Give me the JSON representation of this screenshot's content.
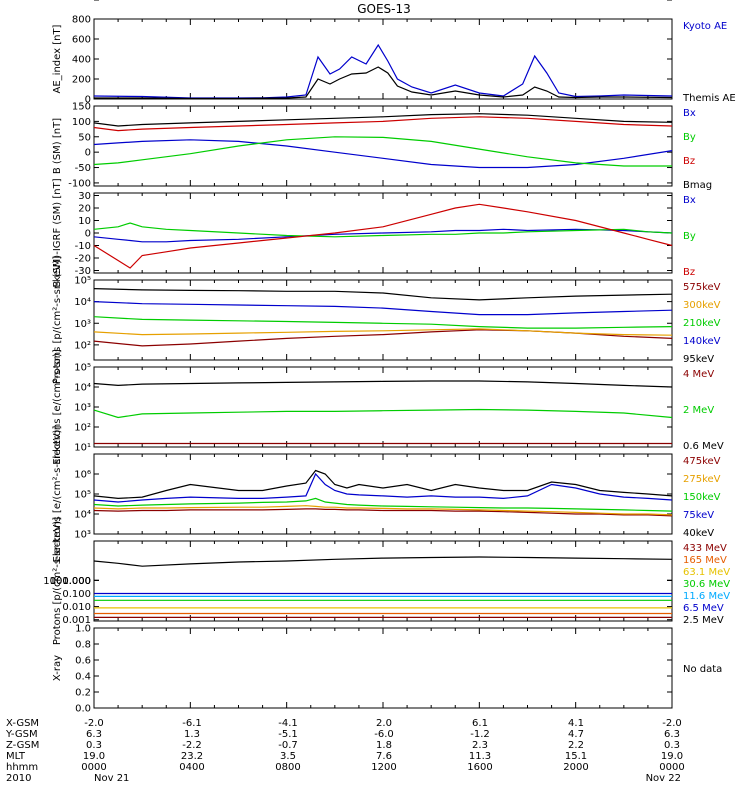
{
  "title": "GOES-13",
  "footer_labels": [
    "X-GSM",
    "Y-GSM",
    "Z-GSM",
    "MLT",
    "hhmm",
    "2010"
  ],
  "footer_rows": [
    [
      "-2.0",
      "-6.1",
      "-4.1",
      "2.0",
      "6.1",
      "4.1",
      "-2.0"
    ],
    [
      "6.3",
      "1.3",
      "-5.1",
      "-6.0",
      "-1.2",
      "4.7",
      "6.3"
    ],
    [
      "0.3",
      "-2.2",
      "-0.7",
      "1.8",
      "2.3",
      "2.2",
      "0.3"
    ],
    [
      "19.0",
      "23.2",
      "3.5",
      "7.6",
      "11.3",
      "15.1",
      "19.0"
    ],
    [
      "0000",
      "0400",
      "0800",
      "1200",
      "1600",
      "2000",
      "0000"
    ],
    [
      "Nov 21",
      "",
      "",
      "",
      "",
      "",
      "Nov 22"
    ]
  ],
  "chart_data": [
    {
      "type": "line",
      "ylabel": "AE_index [nT]",
      "yscale": "linear",
      "ylim": [
        0,
        800
      ],
      "yticks": [
        "0",
        "200",
        "400",
        "600",
        "800"
      ],
      "x_hours": [
        0,
        2,
        4,
        6,
        7,
        8,
        8.8,
        9.3,
        9.8,
        10.2,
        10.7,
        11.3,
        11.8,
        12.2,
        12.6,
        13.2,
        14,
        15,
        16,
        17,
        17.8,
        18.3,
        18.8,
        19.3,
        20,
        21,
        22,
        24
      ],
      "series": [
        {
          "name": "Kyoto AE",
          "color": "#0000cc",
          "values": [
            30,
            25,
            10,
            10,
            12,
            20,
            40,
            420,
            250,
            300,
            420,
            350,
            540,
            380,
            200,
            120,
            60,
            140,
            60,
            30,
            150,
            430,
            260,
            60,
            25,
            30,
            40,
            30
          ]
        },
        {
          "name": "Themis AE",
          "color": "#000000",
          "values": [
            10,
            10,
            5,
            5,
            8,
            10,
            20,
            200,
            150,
            200,
            250,
            260,
            320,
            260,
            130,
            70,
            40,
            80,
            40,
            20,
            40,
            120,
            80,
            20,
            15,
            20,
            20,
            15
          ]
        }
      ]
    },
    {
      "type": "line",
      "ylabel": "B (SM) [nT]",
      "yscale": "linear",
      "ylim": [
        -110,
        150
      ],
      "yticks": [
        "-100",
        "-50",
        "0",
        "50",
        "100",
        "150"
      ],
      "x_hours": [
        0,
        1,
        2,
        4,
        6,
        8,
        10,
        12,
        14,
        16,
        18,
        20,
        22,
        24
      ],
      "series": [
        {
          "name": "Bx",
          "color": "#0000cc",
          "values": [
            25,
            30,
            35,
            40,
            35,
            20,
            0,
            -20,
            -40,
            -50,
            -50,
            -40,
            -20,
            5
          ]
        },
        {
          "name": "By",
          "color": "#00cc00",
          "values": [
            -40,
            -35,
            -25,
            -5,
            20,
            40,
            50,
            48,
            35,
            10,
            -15,
            -35,
            -45,
            -45
          ]
        },
        {
          "name": "Bz",
          "color": "#cc0000",
          "values": [
            80,
            70,
            75,
            80,
            85,
            90,
            95,
            100,
            110,
            115,
            110,
            100,
            90,
            85
          ]
        },
        {
          "name": "Bmag",
          "color": "#000000",
          "values": [
            95,
            85,
            90,
            95,
            100,
            105,
            110,
            115,
            122,
            125,
            120,
            110,
            100,
            97
          ]
        }
      ]
    },
    {
      "type": "line",
      "ylabel": "B (SM)-IGRF (SM) [nT]",
      "yscale": "linear",
      "ylim": [
        -32,
        32
      ],
      "yticks": [
        "-30",
        "-20",
        "-10",
        "0",
        "10",
        "20",
        "30"
      ],
      "x_hours": [
        0,
        1,
        1.5,
        2,
        3,
        4,
        6,
        8,
        10,
        12,
        14,
        15,
        16,
        17,
        18,
        20,
        22,
        23,
        24
      ],
      "series": [
        {
          "name": "Bx",
          "color": "#0000cc",
          "values": [
            -3,
            -5,
            -6,
            -7,
            -7,
            -6,
            -5,
            -3,
            -1,
            0,
            1,
            2,
            2,
            3,
            2,
            3,
            2,
            1,
            0
          ]
        },
        {
          "name": "By",
          "color": "#00cc00",
          "values": [
            3,
            5,
            8,
            5,
            3,
            2,
            0,
            -2,
            -3,
            -2,
            -1,
            -1,
            0,
            0,
            1,
            2,
            3,
            1,
            0
          ]
        },
        {
          "name": "Bz",
          "color": "#cc0000",
          "values": [
            -10,
            -22,
            -28,
            -18,
            -15,
            -12,
            -8,
            -4,
            0,
            5,
            15,
            20,
            23,
            20,
            17,
            10,
            0,
            -5,
            -10
          ]
        }
      ]
    },
    {
      "type": "line",
      "ylabel": "Protons [p/(cm²-s-sr-keV)]",
      "yscale": "log",
      "ylim": [
        20,
        100000
      ],
      "yticks": [
        "10²",
        "10³",
        "10⁴",
        "10⁵"
      ],
      "x_hours": [
        0,
        2,
        4,
        6,
        8,
        10,
        12,
        14,
        16,
        18,
        20,
        22,
        24
      ],
      "series": [
        {
          "name": "575keV",
          "color": "#8b0000",
          "values": [
            150,
            90,
            110,
            150,
            200,
            250,
            300,
            400,
            500,
            450,
            350,
            250,
            200
          ]
        },
        {
          "name": "300keV",
          "color": "#e6a000",
          "values": [
            400,
            300,
            320,
            350,
            380,
            420,
            450,
            500,
            550,
            450,
            350,
            300,
            280
          ]
        },
        {
          "name": "210keV",
          "color": "#00cc00",
          "values": [
            2000,
            1500,
            1400,
            1300,
            1200,
            1100,
            1000,
            900,
            700,
            600,
            600,
            650,
            700
          ]
        },
        {
          "name": "140keV",
          "color": "#0000cc",
          "values": [
            10000,
            8000,
            7500,
            7000,
            6500,
            6000,
            5000,
            3500,
            2500,
            2500,
            3000,
            3500,
            4000
          ]
        },
        {
          "name": "95keV",
          "color": "#000000",
          "values": [
            40000,
            35000,
            33000,
            32000,
            30000,
            30000,
            25000,
            15000,
            12000,
            15000,
            18000,
            20000,
            22000
          ]
        }
      ]
    },
    {
      "type": "line",
      "ylabel": "Electrons [e/(cm²-s-sr)]",
      "yscale": "log",
      "ylim": [
        10,
        100000
      ],
      "yticks": [
        "10¹",
        "10²",
        "10³",
        "10⁴",
        "10⁵"
      ],
      "x_hours": [
        0,
        1,
        2,
        4,
        6,
        8,
        10,
        12,
        14,
        16,
        18,
        20,
        22,
        24
      ],
      "series": [
        {
          "name": "4 MeV",
          "color": "#8b0000",
          "values": [
            15,
            15,
            15,
            15,
            15,
            15,
            15,
            15,
            15,
            15,
            15,
            15,
            15,
            15
          ]
        },
        {
          "name": "2 MeV",
          "color": "#00cc00",
          "values": [
            700,
            300,
            450,
            500,
            550,
            600,
            600,
            650,
            700,
            750,
            700,
            600,
            500,
            300
          ]
        },
        {
          "name": "0.6 MeV",
          "color": "#000000",
          "values": [
            15000,
            12000,
            14000,
            15000,
            16000,
            17000,
            18000,
            19000,
            20000,
            20000,
            18000,
            15000,
            12000,
            10000
          ]
        }
      ]
    },
    {
      "type": "line",
      "ylabel": "Electrons [e/(cm²-s-sr-keV)]",
      "yscale": "log",
      "ylim": [
        1000,
        10000000
      ],
      "yticks": [
        "10³",
        "10⁴",
        "10⁵",
        "10⁶"
      ],
      "x_hours": [
        0,
        1,
        2,
        3,
        4,
        6,
        7,
        8,
        8.8,
        9.2,
        9.6,
        10,
        10.5,
        11,
        12,
        13,
        14,
        15,
        16,
        17,
        18,
        19,
        20,
        21,
        22,
        23,
        24
      ],
      "series": [
        {
          "name": "475keV",
          "color": "#8b0000",
          "values": [
            15000,
            14000,
            15000,
            15000,
            16000,
            16000,
            16000,
            17000,
            18000,
            18000,
            17000,
            17000,
            16000,
            16000,
            15000,
            15000,
            15000,
            14000,
            14000,
            13000,
            12000,
            11000,
            10000,
            10000,
            9000,
            9000,
            8000
          ]
        },
        {
          "name": "275keV",
          "color": "#e6a000",
          "values": [
            20000,
            18000,
            20000,
            20000,
            21000,
            22000,
            22000,
            24000,
            26000,
            24000,
            22000,
            22000,
            20000,
            20000,
            19000,
            18000,
            18000,
            17000,
            16000,
            15000,
            14000,
            13000,
            12000,
            11000,
            10000,
            10000,
            9000
          ]
        },
        {
          "name": "150keV",
          "color": "#00cc00",
          "values": [
            30000,
            25000,
            28000,
            30000,
            32000,
            35000,
            38000,
            40000,
            45000,
            60000,
            40000,
            35000,
            30000,
            28000,
            25000,
            24000,
            23000,
            22000,
            21000,
            20000,
            20000,
            19000,
            18000,
            17000,
            16000,
            15000,
            14000
          ]
        },
        {
          "name": "75keV",
          "color": "#0000cc",
          "values": [
            50000,
            40000,
            50000,
            60000,
            70000,
            60000,
            60000,
            70000,
            80000,
            1000000,
            300000,
            150000,
            100000,
            90000,
            80000,
            70000,
            80000,
            70000,
            70000,
            60000,
            80000,
            300000,
            200000,
            100000,
            70000,
            60000,
            50000
          ]
        },
        {
          "name": "40keV",
          "color": "#000000",
          "values": [
            80000,
            60000,
            70000,
            150000,
            300000,
            150000,
            150000,
            250000,
            350000,
            1500000,
            1000000,
            300000,
            200000,
            300000,
            200000,
            300000,
            150000,
            300000,
            200000,
            150000,
            150000,
            400000,
            300000,
            150000,
            120000,
            100000,
            80000
          ]
        }
      ]
    },
    {
      "type": "line",
      "ylabel": "Protons [p/(cm²-s-sr-keV)]",
      "yscale": "log",
      "ylim": [
        0.0008,
        1000
      ],
      "yticks": [
        "0.001",
        "0.010",
        "0.100",
        "1.000",
        "10.000",
        "100.000",
        "1000.000"
      ],
      "x_hours": [
        0,
        1,
        2,
        4,
        6,
        8,
        10,
        12,
        14,
        16,
        18,
        20,
        22,
        24
      ],
      "series": [
        {
          "name": "433 MeV",
          "color": "#8b0000",
          "values": [
            0.0015,
            0.0015,
            0.0015,
            0.0015,
            0.0015,
            0.0015,
            0.0015,
            0.0015,
            0.0015,
            0.0015,
            0.0015,
            0.0015,
            0.0015,
            0.0015
          ]
        },
        {
          "name": "165 MeV",
          "color": "#e65c00",
          "values": [
            0.003,
            0.003,
            0.003,
            0.003,
            0.003,
            0.003,
            0.003,
            0.003,
            0.003,
            0.003,
            0.003,
            0.003,
            0.003,
            0.003
          ]
        },
        {
          "name": "63.1 MeV",
          "color": "#e6c200",
          "values": [
            0.008,
            0.008,
            0.008,
            0.008,
            0.008,
            0.008,
            0.008,
            0.008,
            0.008,
            0.008,
            0.008,
            0.008,
            0.008,
            0.008
          ]
        },
        {
          "name": "30.6 MeV",
          "color": "#00cc00",
          "values": [
            0.03,
            0.03,
            0.03,
            0.03,
            0.03,
            0.03,
            0.03,
            0.03,
            0.03,
            0.03,
            0.03,
            0.03,
            0.03,
            0.03
          ]
        },
        {
          "name": "11.6 MeV",
          "color": "#00aaff",
          "values": [
            0.06,
            0.06,
            0.06,
            0.06,
            0.06,
            0.06,
            0.06,
            0.06,
            0.06,
            0.06,
            0.06,
            0.06,
            0.06,
            0.06
          ]
        },
        {
          "name": "6.5 MeV",
          "color": "#0000cc",
          "values": [
            0.1,
            0.1,
            0.1,
            0.1,
            0.1,
            0.1,
            0.1,
            0.1,
            0.1,
            0.1,
            0.1,
            0.1,
            0.1,
            0.1
          ]
        },
        {
          "name": "2.5 MeV",
          "color": "#000000",
          "values": [
            30,
            20,
            12,
            18,
            25,
            30,
            40,
            50,
            55,
            60,
            55,
            50,
            45,
            40
          ]
        }
      ]
    },
    {
      "type": "line",
      "ylabel": "X-ray",
      "yscale": "linear",
      "ylim": [
        0,
        1
      ],
      "yticks": [
        "0.0",
        "0.2",
        "0.4",
        "0.6",
        "0.8",
        "1.0"
      ],
      "x_hours": [],
      "series": [],
      "note": "No data"
    }
  ]
}
